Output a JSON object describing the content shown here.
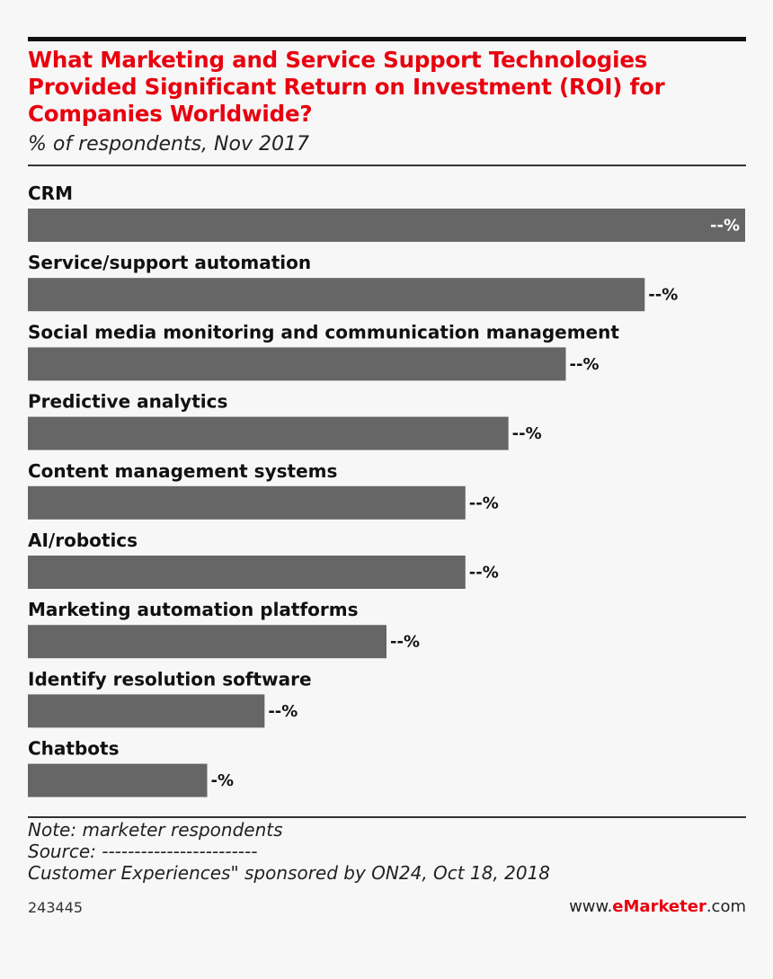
{
  "chart_data": {
    "type": "bar",
    "orientation": "horizontal",
    "title": "What Marketing and Service Support Technologies Provided Significant Return on Investment (ROI) for Companies Worldwide?",
    "subtitle": "% of respondents, Nov 2017",
    "categories": [
      "CRM",
      "Service/support automation",
      "Social media monitoring and communication management",
      "Predictive analytics",
      "Content management systems",
      "AI/robotics",
      "Marketing automation platforms",
      "Identify resolution software",
      "Chatbots"
    ],
    "values": [
      100,
      86,
      75,
      67,
      61,
      61,
      50,
      33,
      25
    ],
    "value_labels": [
      "--%",
      "--%",
      "--%",
      "--%",
      "--%",
      "--%",
      "--%",
      "--%",
      "-%"
    ],
    "xlim": [
      0,
      100
    ],
    "bar_color": "#666666",
    "grid": false,
    "legend": "none"
  },
  "footer": {
    "note": "Note: marketer respondents",
    "source": "Source: ------------------------",
    "source_detail": "Customer Experiences\" sponsored by ON24, Oct 18, 2018",
    "chart_id": "243445",
    "brand_prefix": "www.",
    "brand_bold": "eMarketer",
    "brand_suffix": ".com"
  },
  "colors": {
    "accent": "#e8000f",
    "bar": "#666666",
    "text": "#111111"
  }
}
